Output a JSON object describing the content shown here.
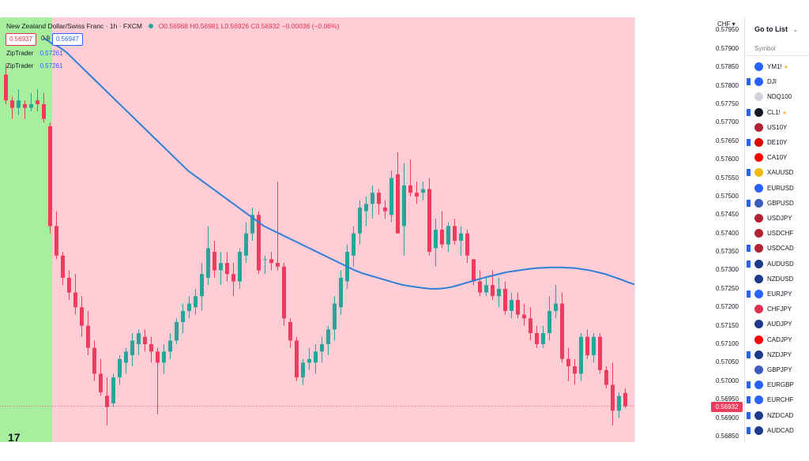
{
  "header": {
    "title": "New Zealand Dollar/Swiss Franc · 1h · FXCM",
    "ohlc": "O0.56968 H0.56981 L0.56926 C0.56932 −0.00036 (−0.06%)"
  },
  "trade_box": {
    "bid": "0.56937",
    "spread": "0.9",
    "ask": "0.56947"
  },
  "indicators": [
    {
      "name": "ZipTrader",
      "value": "0.57261"
    },
    {
      "name": "ZipTrader",
      "value": "0.57261"
    }
  ],
  "price_axis": {
    "currency": "CHF",
    "last_price": "0.56932",
    "ticks": [
      "0.57950",
      "0.57900",
      "0.57850",
      "0.57800",
      "0.57750",
      "0.57700",
      "0.57650",
      "0.57600",
      "0.57550",
      "0.57500",
      "0.57450",
      "0.57400",
      "0.57350",
      "0.57300",
      "0.57250",
      "0.57200",
      "0.57150",
      "0.57100",
      "0.57050",
      "0.57000",
      "0.56950",
      "0.56900",
      "0.56850"
    ]
  },
  "watchlist": {
    "go_to_list": "Go to List",
    "column_header": "Symbol",
    "items": [
      {
        "name": "YM1!",
        "icon_color": "#2962ff",
        "flag": false,
        "star": true
      },
      {
        "name": "DJI",
        "icon_color": "#2962ff",
        "flag": true,
        "star": false
      },
      {
        "name": "NDQ100",
        "icon_color": "#d1d4dc",
        "flag": false,
        "star": false
      },
      {
        "name": "CL1!",
        "icon_color": "#131722",
        "flag": true,
        "star": true
      },
      {
        "name": "US10Y",
        "icon_color": "#b22234",
        "flag": false,
        "star": false
      },
      {
        "name": "DE10Y",
        "icon_color": "#dd0000",
        "flag": true,
        "star": false
      },
      {
        "name": "CA10Y",
        "icon_color": "#ff0000",
        "flag": false,
        "star": false
      },
      {
        "name": "XAUUSD",
        "icon_color": "#f0b90b",
        "flag": true,
        "star": false
      },
      {
        "name": "EURUSD",
        "icon_color": "#2962ff",
        "flag": false,
        "star": false
      },
      {
        "name": "GBPUSD",
        "icon_color": "#3b5bbf",
        "flag": true,
        "star": false
      },
      {
        "name": "USDJPY",
        "icon_color": "#b22234",
        "flag": false,
        "star": false
      },
      {
        "name": "USDCHF",
        "icon_color": "#b22234",
        "flag": false,
        "star": false
      },
      {
        "name": "USDCAD",
        "icon_color": "#b22234",
        "flag": true,
        "star": false
      },
      {
        "name": "AUDUSD",
        "icon_color": "#1e3a8a",
        "flag": true,
        "star": false
      },
      {
        "name": "NZDUSD",
        "icon_color": "#1e3a8a",
        "flag": false,
        "star": false
      },
      {
        "name": "EURJPY",
        "icon_color": "#2962ff",
        "flag": true,
        "star": false
      },
      {
        "name": "CHFJPY",
        "icon_color": "#e03150",
        "flag": false,
        "star": false
      },
      {
        "name": "AUDJPY",
        "icon_color": "#1e3a8a",
        "flag": false,
        "star": false
      },
      {
        "name": "CADJPY",
        "icon_color": "#ff0000",
        "flag": false,
        "star": false
      },
      {
        "name": "NZDJPY",
        "icon_color": "#1e3a8a",
        "flag": true,
        "star": false
      },
      {
        "name": "GBPJPY",
        "icon_color": "#3b5bbf",
        "flag": false,
        "star": false
      },
      {
        "name": "EURGBP",
        "icon_color": "#2962ff",
        "flag": true,
        "star": false
      },
      {
        "name": "EURCHF",
        "icon_color": "#2962ff",
        "flag": true,
        "star": false
      },
      {
        "name": "NZDCAD",
        "icon_color": "#1e3a8a",
        "flag": true,
        "star": false
      },
      {
        "name": "AUDCAD",
        "icon_color": "#1e3a8a",
        "flag": true,
        "star": false
      }
    ]
  },
  "colors": {
    "up": "#26a69a",
    "down": "#ef3b5d",
    "ma_line": "#2f7fd6",
    "background_bearish": "#ffcdd6",
    "background_bullish": "#a7ef9f",
    "flag": "#2962ff"
  },
  "chart_data": {
    "type": "candlestick",
    "symbol": "NZDCHF",
    "timeframe": "1h",
    "ylim": [
      0.56835,
      0.57985
    ],
    "candles": [
      {
        "o": 0.5783,
        "h": 0.5786,
        "l": 0.5775,
        "c": 0.5776
      },
      {
        "o": 0.5776,
        "h": 0.5777,
        "l": 0.5771,
        "c": 0.5774
      },
      {
        "o": 0.5774,
        "h": 0.5779,
        "l": 0.5772,
        "c": 0.5776
      },
      {
        "o": 0.5775,
        "h": 0.5776,
        "l": 0.5771,
        "c": 0.5774
      },
      {
        "o": 0.5774,
        "h": 0.5778,
        "l": 0.5773,
        "c": 0.5775
      },
      {
        "o": 0.5776,
        "h": 0.5779,
        "l": 0.5773,
        "c": 0.5775
      },
      {
        "o": 0.5775,
        "h": 0.5778,
        "l": 0.577,
        "c": 0.5771
      },
      {
        "o": 0.5769,
        "h": 0.577,
        "l": 0.574,
        "c": 0.5742
      },
      {
        "o": 0.5742,
        "h": 0.5746,
        "l": 0.5733,
        "c": 0.5734
      },
      {
        "o": 0.5734,
        "h": 0.5735,
        "l": 0.5726,
        "c": 0.5728
      },
      {
        "o": 0.5728,
        "h": 0.573,
        "l": 0.5722,
        "c": 0.5724
      },
      {
        "o": 0.5724,
        "h": 0.5729,
        "l": 0.5718,
        "c": 0.572
      },
      {
        "o": 0.572,
        "h": 0.5723,
        "l": 0.5712,
        "c": 0.5715
      },
      {
        "o": 0.5715,
        "h": 0.5719,
        "l": 0.5707,
        "c": 0.5709
      },
      {
        "o": 0.5709,
        "h": 0.5711,
        "l": 0.57,
        "c": 0.5702
      },
      {
        "o": 0.5702,
        "h": 0.5706,
        "l": 0.5696,
        "c": 0.5697
      },
      {
        "o": 0.5696,
        "h": 0.5701,
        "l": 0.5688,
        "c": 0.5693
      },
      {
        "o": 0.5694,
        "h": 0.5702,
        "l": 0.5693,
        "c": 0.5701
      },
      {
        "o": 0.5701,
        "h": 0.5707,
        "l": 0.5699,
        "c": 0.5706
      },
      {
        "o": 0.5705,
        "h": 0.5709,
        "l": 0.5702,
        "c": 0.5708
      },
      {
        "o": 0.5707,
        "h": 0.5713,
        "l": 0.5704,
        "c": 0.5711
      },
      {
        "o": 0.571,
        "h": 0.5714,
        "l": 0.5707,
        "c": 0.5713
      },
      {
        "o": 0.5712,
        "h": 0.5714,
        "l": 0.5708,
        "c": 0.571
      },
      {
        "o": 0.571,
        "h": 0.5712,
        "l": 0.5705,
        "c": 0.5708
      },
      {
        "o": 0.5708,
        "h": 0.5709,
        "l": 0.5691,
        "c": 0.5705
      },
      {
        "o": 0.5705,
        "h": 0.571,
        "l": 0.5702,
        "c": 0.5708
      },
      {
        "o": 0.5708,
        "h": 0.5713,
        "l": 0.5706,
        "c": 0.5711
      },
      {
        "o": 0.5711,
        "h": 0.5717,
        "l": 0.571,
        "c": 0.5716
      },
      {
        "o": 0.5716,
        "h": 0.5721,
        "l": 0.5713,
        "c": 0.5719
      },
      {
        "o": 0.5719,
        "h": 0.5723,
        "l": 0.5717,
        "c": 0.5721
      },
      {
        "o": 0.572,
        "h": 0.5725,
        "l": 0.5718,
        "c": 0.5723
      },
      {
        "o": 0.5723,
        "h": 0.5732,
        "l": 0.5719,
        "c": 0.5729
      },
      {
        "o": 0.5728,
        "h": 0.5742,
        "l": 0.5726,
        "c": 0.5736
      },
      {
        "o": 0.5735,
        "h": 0.5738,
        "l": 0.5728,
        "c": 0.573
      },
      {
        "o": 0.573,
        "h": 0.5735,
        "l": 0.5726,
        "c": 0.5732
      },
      {
        "o": 0.5732,
        "h": 0.5735,
        "l": 0.5727,
        "c": 0.5729
      },
      {
        "o": 0.5729,
        "h": 0.5732,
        "l": 0.5723,
        "c": 0.5727
      },
      {
        "o": 0.5727,
        "h": 0.5736,
        "l": 0.5725,
        "c": 0.5735
      },
      {
        "o": 0.5734,
        "h": 0.5743,
        "l": 0.5732,
        "c": 0.574
      },
      {
        "o": 0.574,
        "h": 0.5747,
        "l": 0.5738,
        "c": 0.5745
      },
      {
        "o": 0.5745,
        "h": 0.5746,
        "l": 0.5729,
        "c": 0.573
      },
      {
        "o": 0.5733,
        "h": 0.5734,
        "l": 0.5729,
        "c": 0.5733
      },
      {
        "o": 0.5733,
        "h": 0.5735,
        "l": 0.573,
        "c": 0.5732
      },
      {
        "o": 0.5732,
        "h": 0.5754,
        "l": 0.573,
        "c": 0.5731
      },
      {
        "o": 0.5731,
        "h": 0.5732,
        "l": 0.5715,
        "c": 0.5717
      },
      {
        "o": 0.5716,
        "h": 0.5717,
        "l": 0.5709,
        "c": 0.5711
      },
      {
        "o": 0.5711,
        "h": 0.5712,
        "l": 0.57,
        "c": 0.5701
      },
      {
        "o": 0.5701,
        "h": 0.5706,
        "l": 0.5699,
        "c": 0.5705
      },
      {
        "o": 0.5705,
        "h": 0.5709,
        "l": 0.5703,
        "c": 0.5706
      },
      {
        "o": 0.5705,
        "h": 0.571,
        "l": 0.5702,
        "c": 0.5708
      },
      {
        "o": 0.5708,
        "h": 0.5712,
        "l": 0.5705,
        "c": 0.571
      },
      {
        "o": 0.571,
        "h": 0.5715,
        "l": 0.5707,
        "c": 0.5714
      },
      {
        "o": 0.5714,
        "h": 0.5723,
        "l": 0.5711,
        "c": 0.5721
      },
      {
        "o": 0.572,
        "h": 0.573,
        "l": 0.5718,
        "c": 0.5728
      },
      {
        "o": 0.5727,
        "h": 0.5737,
        "l": 0.5725,
        "c": 0.5735
      },
      {
        "o": 0.5734,
        "h": 0.5742,
        "l": 0.5731,
        "c": 0.574
      },
      {
        "o": 0.574,
        "h": 0.5749,
        "l": 0.5737,
        "c": 0.5747
      },
      {
        "o": 0.5746,
        "h": 0.575,
        "l": 0.5742,
        "c": 0.5748
      },
      {
        "o": 0.5748,
        "h": 0.5753,
        "l": 0.5744,
        "c": 0.5751
      },
      {
        "o": 0.5751,
        "h": 0.5752,
        "l": 0.5745,
        "c": 0.5748
      },
      {
        "o": 0.5747,
        "h": 0.5749,
        "l": 0.5744,
        "c": 0.5746
      },
      {
        "o": 0.5745,
        "h": 0.5757,
        "l": 0.5743,
        "c": 0.5755
      },
      {
        "o": 0.5756,
        "h": 0.5762,
        "l": 0.574,
        "c": 0.574
      },
      {
        "o": 0.5742,
        "h": 0.5759,
        "l": 0.5734,
        "c": 0.5753
      },
      {
        "o": 0.5753,
        "h": 0.576,
        "l": 0.575,
        "c": 0.5751
      },
      {
        "o": 0.5751,
        "h": 0.5754,
        "l": 0.5748,
        "c": 0.575
      },
      {
        "o": 0.5751,
        "h": 0.5754,
        "l": 0.5749,
        "c": 0.5752
      },
      {
        "o": 0.5752,
        "h": 0.5755,
        "l": 0.5734,
        "c": 0.5735
      },
      {
        "o": 0.5736,
        "h": 0.5744,
        "l": 0.5731,
        "c": 0.5741
      },
      {
        "o": 0.5741,
        "h": 0.5746,
        "l": 0.5736,
        "c": 0.5737
      },
      {
        "o": 0.5737,
        "h": 0.5743,
        "l": 0.5735,
        "c": 0.5742
      },
      {
        "o": 0.5742,
        "h": 0.5744,
        "l": 0.5737,
        "c": 0.5738
      },
      {
        "o": 0.5738,
        "h": 0.5742,
        "l": 0.5734,
        "c": 0.574
      },
      {
        "o": 0.574,
        "h": 0.5741,
        "l": 0.5732,
        "c": 0.5734
      },
      {
        "o": 0.5733,
        "h": 0.5733,
        "l": 0.5726,
        "c": 0.5727
      },
      {
        "o": 0.5727,
        "h": 0.573,
        "l": 0.5723,
        "c": 0.5724
      },
      {
        "o": 0.5724,
        "h": 0.5728,
        "l": 0.5723,
        "c": 0.5726
      },
      {
        "o": 0.5726,
        "h": 0.573,
        "l": 0.5722,
        "c": 0.5723
      },
      {
        "o": 0.5723,
        "h": 0.5728,
        "l": 0.572,
        "c": 0.5725
      },
      {
        "o": 0.5725,
        "h": 0.5727,
        "l": 0.5718,
        "c": 0.5719
      },
      {
        "o": 0.5719,
        "h": 0.5724,
        "l": 0.5717,
        "c": 0.5722
      },
      {
        "o": 0.5722,
        "h": 0.5724,
        "l": 0.5717,
        "c": 0.5718
      },
      {
        "o": 0.5718,
        "h": 0.5721,
        "l": 0.5715,
        "c": 0.5717
      },
      {
        "o": 0.5717,
        "h": 0.572,
        "l": 0.5711,
        "c": 0.5713
      },
      {
        "o": 0.5713,
        "h": 0.5715,
        "l": 0.5709,
        "c": 0.571
      },
      {
        "o": 0.571,
        "h": 0.5715,
        "l": 0.5709,
        "c": 0.5713
      },
      {
        "o": 0.5713,
        "h": 0.5723,
        "l": 0.5711,
        "c": 0.5719
      },
      {
        "o": 0.5719,
        "h": 0.5726,
        "l": 0.5717,
        "c": 0.5721
      },
      {
        "o": 0.5721,
        "h": 0.5724,
        "l": 0.5705,
        "c": 0.5706
      },
      {
        "o": 0.5706,
        "h": 0.5709,
        "l": 0.57,
        "c": 0.5704
      },
      {
        "o": 0.5704,
        "h": 0.5706,
        "l": 0.5699,
        "c": 0.5702
      },
      {
        "o": 0.5702,
        "h": 0.5713,
        "l": 0.57,
        "c": 0.5712
      },
      {
        "o": 0.5712,
        "h": 0.5714,
        "l": 0.5706,
        "c": 0.5707
      },
      {
        "o": 0.5707,
        "h": 0.5713,
        "l": 0.5705,
        "c": 0.5712
      },
      {
        "o": 0.5712,
        "h": 0.5713,
        "l": 0.5702,
        "c": 0.5703
      },
      {
        "o": 0.5703,
        "h": 0.5704,
        "l": 0.5698,
        "c": 0.5699
      },
      {
        "o": 0.5699,
        "h": 0.5705,
        "l": 0.5688,
        "c": 0.5692
      },
      {
        "o": 0.5692,
        "h": 0.5697,
        "l": 0.569,
        "c": 0.5696
      },
      {
        "o": 0.56968,
        "h": 0.56981,
        "l": 0.56926,
        "c": 0.56932
      }
    ],
    "ma_series": [
      0.5793,
      0.57915,
      0.57905,
      0.5789,
      0.5787,
      0.5785,
      0.5783,
      0.5781,
      0.5779,
      0.5777,
      0.5775,
      0.5773,
      0.5771,
      0.5769,
      0.5767,
      0.5765,
      0.5763,
      0.5761,
      0.5759,
      0.5757,
      0.57555,
      0.5754,
      0.57525,
      0.5751,
      0.57495,
      0.5748,
      0.57465,
      0.5745,
      0.57435,
      0.5742,
      0.5741,
      0.574,
      0.5739,
      0.5738,
      0.5737,
      0.5736,
      0.5735,
      0.5734,
      0.5733,
      0.5732,
      0.5731,
      0.573,
      0.57292,
      0.57286,
      0.5728,
      0.57274,
      0.57268,
      0.57262,
      0.57258,
      0.57255,
      0.57252,
      0.5725,
      0.5725,
      0.57252,
      0.57256,
      0.57262,
      0.57268,
      0.57274,
      0.5728,
      0.57285,
      0.5729,
      0.57295,
      0.57298,
      0.57301,
      0.57304,
      0.57306,
      0.57307,
      0.57308,
      0.57308,
      0.57307,
      0.57306,
      0.57303,
      0.573,
      0.57295,
      0.5729,
      0.57283,
      0.57276,
      0.57268,
      0.57261
    ],
    "ma_start_index": 6
  }
}
